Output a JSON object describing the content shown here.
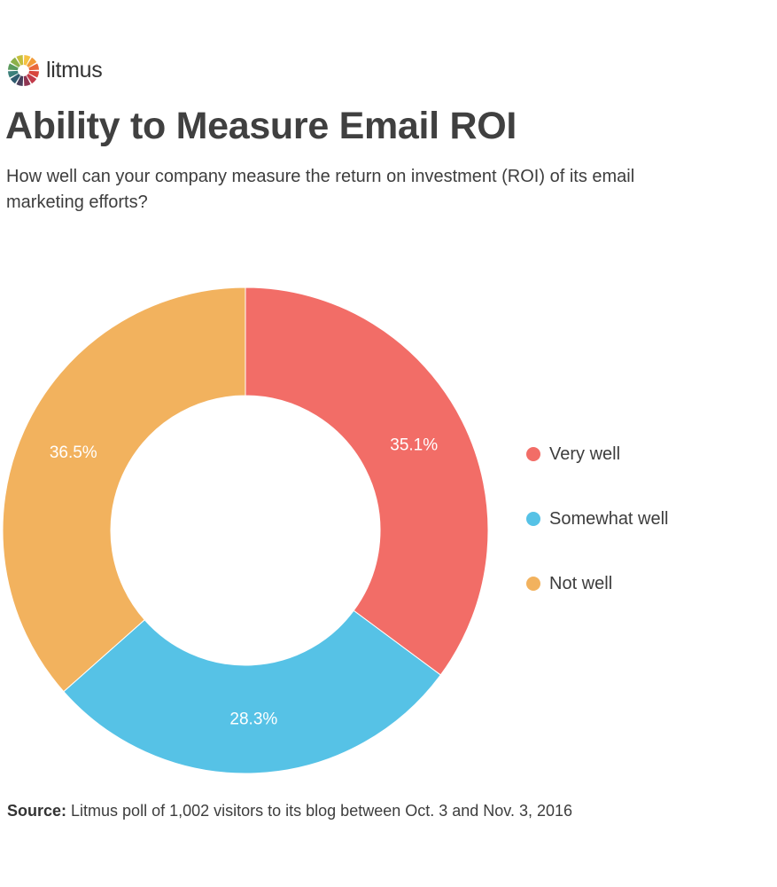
{
  "brand": {
    "name": "litmus",
    "logo_icon": "litmus-color-wheel-logo",
    "logo_colors": [
      "#f5c242",
      "#f29b38",
      "#e9683a",
      "#d8453d",
      "#c23a4a",
      "#8e3552",
      "#4a3f5c",
      "#2f5a6e",
      "#3b7f7a",
      "#5b9a5c",
      "#8db04a",
      "#c4bf3e"
    ]
  },
  "title": "Ability to Measure Email ROI",
  "subtitle": "How well can your company measure the return on investment (ROI) of its email marketing efforts?",
  "chart_data": {
    "type": "pie",
    "donut": true,
    "categories": [
      "Very well",
      "Somewhat well",
      "Not well"
    ],
    "values": [
      35.1,
      28.3,
      36.5
    ],
    "value_labels": [
      "35.1%",
      "28.3%",
      "36.5%"
    ],
    "colors": [
      "#f26d67",
      "#56c2e6",
      "#f2b25e"
    ],
    "start": "top",
    "direction": "clockwise",
    "legend_position": "right"
  },
  "source": {
    "label": "Source:",
    "text": " Litmus poll of 1,002 visitors to its blog between Oct. 3 and Nov. 3, 2016"
  }
}
